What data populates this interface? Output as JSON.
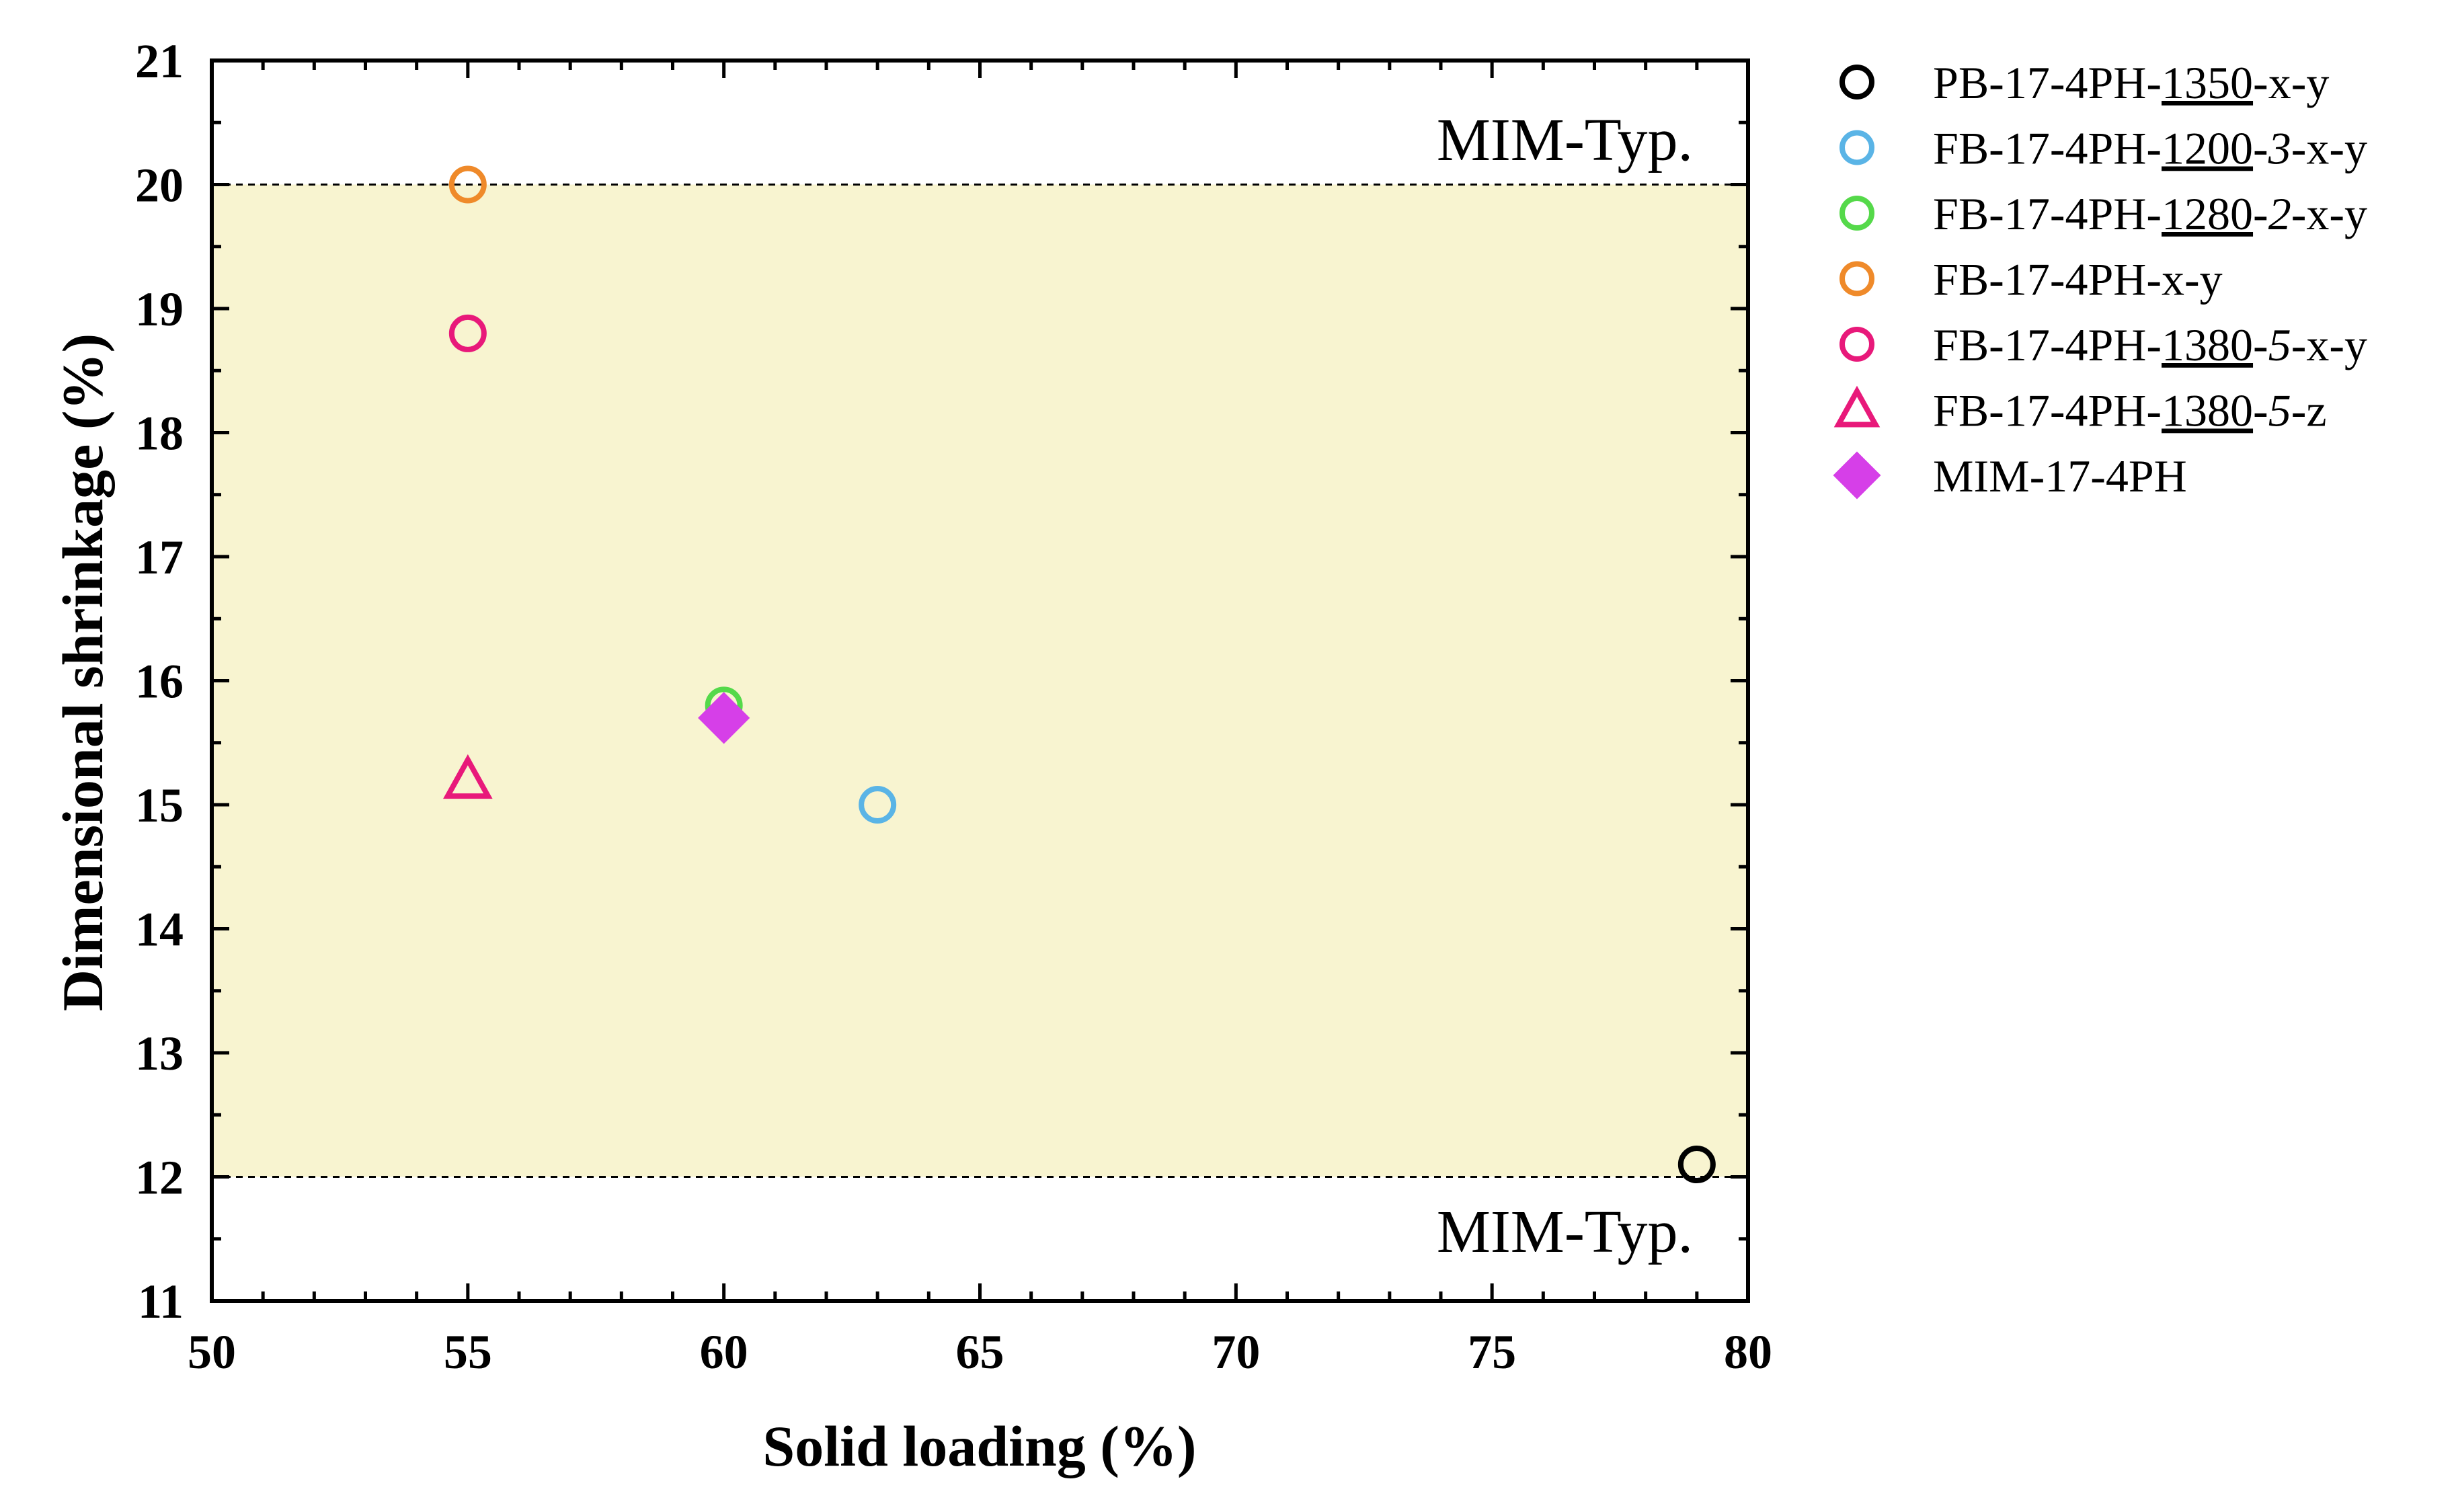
{
  "chart_data": {
    "type": "scatter",
    "title": "",
    "xlabel": "Solid loading (%)",
    "ylabel": "Dimensional shrinkage (%)",
    "xlim": [
      50,
      80
    ],
    "ylim": [
      11,
      21
    ],
    "xticks": [
      50,
      55,
      60,
      65,
      70,
      75,
      80
    ],
    "yticks": [
      11,
      12,
      13,
      14,
      15,
      16,
      17,
      18,
      19,
      20,
      21
    ],
    "grid": false,
    "legend_position": "outside-right",
    "band": {
      "y_from": 12,
      "y_to": 20,
      "color": "#f8f4d0",
      "label_top": "MIM-Typ.",
      "label_bottom": "MIM-Typ."
    },
    "series": [
      {
        "name": "PB-17-4PH-1350-x-y",
        "legend_parts": [
          {
            "t": "PB-17-4PH-"
          },
          {
            "t": "1350",
            "u": true
          },
          {
            "t": "-x-y"
          }
        ],
        "marker": "circle-open",
        "color": "#000000",
        "points": [
          [
            79,
            12.1
          ]
        ]
      },
      {
        "name": "FB-17-4PH-1200-3-x-y",
        "legend_parts": [
          {
            "t": "FB-17-4PH-"
          },
          {
            "t": "1200",
            "u": true
          },
          {
            "t": "-"
          },
          {
            "t": "3",
            "i": true
          },
          {
            "t": "-x-y"
          }
        ],
        "marker": "circle-open",
        "color": "#5ab4e6",
        "points": [
          [
            63,
            15.0
          ]
        ]
      },
      {
        "name": "FB-17-4PH-1280-2-x-y",
        "legend_parts": [
          {
            "t": "FB-17-4PH-"
          },
          {
            "t": "1280",
            "u": true
          },
          {
            "t": "-"
          },
          {
            "t": "2",
            "i": true
          },
          {
            "t": "-x-y"
          }
        ],
        "marker": "circle-open",
        "color": "#55d94a",
        "points": [
          [
            60,
            15.8
          ]
        ]
      },
      {
        "name": "FB-17-4PH-x-y",
        "legend_parts": [
          {
            "t": "FB-17-4PH-x-y"
          }
        ],
        "marker": "circle-open",
        "color": "#ef8a2a",
        "points": [
          [
            55,
            20.0
          ]
        ]
      },
      {
        "name": "FB-17-4PH-1380-5-x-y",
        "legend_parts": [
          {
            "t": "FB-17-4PH-"
          },
          {
            "t": "1380",
            "u": true
          },
          {
            "t": "-"
          },
          {
            "t": "5",
            "i": true
          },
          {
            "t": "-x-y"
          }
        ],
        "marker": "circle-open",
        "color": "#e8197a",
        "points": [
          [
            55,
            18.8
          ]
        ]
      },
      {
        "name": "FB-17-4PH-1380-5-z",
        "legend_parts": [
          {
            "t": "FB-17-4PH-"
          },
          {
            "t": "1380",
            "u": true
          },
          {
            "t": "-"
          },
          {
            "t": "5",
            "i": true
          },
          {
            "t": "-z"
          }
        ],
        "marker": "triangle-open",
        "color": "#e8197a",
        "points": [
          [
            55,
            15.2
          ]
        ]
      },
      {
        "name": "MIM-17-4PH",
        "legend_parts": [
          {
            "t": "MIM-17-4PH"
          }
        ],
        "marker": "diamond-filled",
        "color": "#d63fe8",
        "points": [
          [
            60,
            15.7
          ]
        ]
      }
    ]
  }
}
